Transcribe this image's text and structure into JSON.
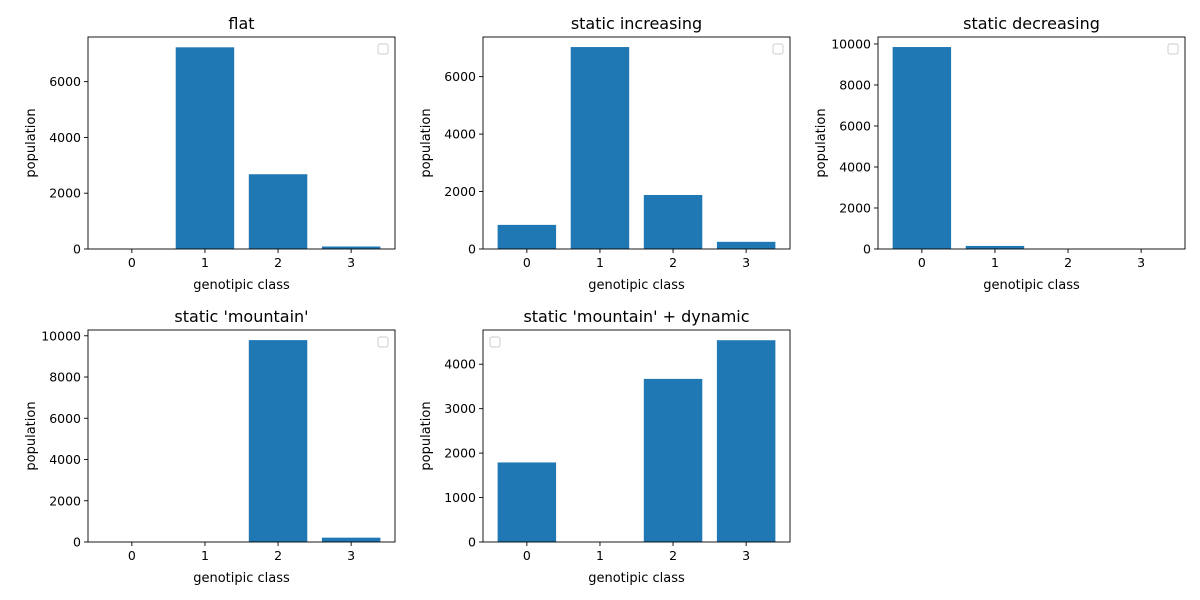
{
  "chart_data": [
    {
      "type": "bar",
      "title": "flat",
      "xlabel": "genotipic class",
      "ylabel": "population",
      "categories": [
        "0",
        "1",
        "2",
        "3"
      ],
      "values": [
        0,
        7230,
        2680,
        90
      ],
      "ylim": [
        0,
        7600
      ],
      "yticks": [
        0,
        2000,
        4000,
        6000
      ],
      "bar_color": "#1f77b4",
      "legend": "top-right",
      "grid": false
    },
    {
      "type": "bar",
      "title": "static increasing",
      "xlabel": "genotipic class",
      "ylabel": "population",
      "categories": [
        "0",
        "1",
        "2",
        "3"
      ],
      "values": [
        840,
        7030,
        1880,
        250
      ],
      "ylim": [
        0,
        7380
      ],
      "yticks": [
        0,
        2000,
        4000,
        6000
      ],
      "bar_color": "#1f77b4",
      "legend": "top-right",
      "grid": false
    },
    {
      "type": "bar",
      "title": "static decreasing",
      "xlabel": "genotipic class",
      "ylabel": "population",
      "categories": [
        "0",
        "1",
        "2",
        "3"
      ],
      "values": [
        9850,
        150,
        0,
        0
      ],
      "ylim": [
        0,
        10340
      ],
      "yticks": [
        0,
        2000,
        4000,
        6000,
        8000,
        10000
      ],
      "bar_color": "#1f77b4",
      "legend": "top-right",
      "grid": false
    },
    {
      "type": "bar",
      "title": "static 'mountain'",
      "xlabel": "genotipic class",
      "ylabel": "population",
      "categories": [
        "0",
        "1",
        "2",
        "3"
      ],
      "values": [
        0,
        0,
        9790,
        210
      ],
      "ylim": [
        0,
        10280
      ],
      "yticks": [
        0,
        2000,
        4000,
        6000,
        8000,
        10000
      ],
      "bar_color": "#1f77b4",
      "legend": "top-right",
      "grid": false
    },
    {
      "type": "bar",
      "title": "static 'mountain' + dynamic",
      "xlabel": "genotipic class",
      "ylabel": "population",
      "categories": [
        "0",
        "1",
        "2",
        "3"
      ],
      "values": [
        1790,
        0,
        3670,
        4540
      ],
      "ylim": [
        0,
        4770
      ],
      "yticks": [
        0,
        1000,
        2000,
        3000,
        4000
      ],
      "bar_color": "#1f77b4",
      "legend": "top-left",
      "grid": false
    }
  ]
}
